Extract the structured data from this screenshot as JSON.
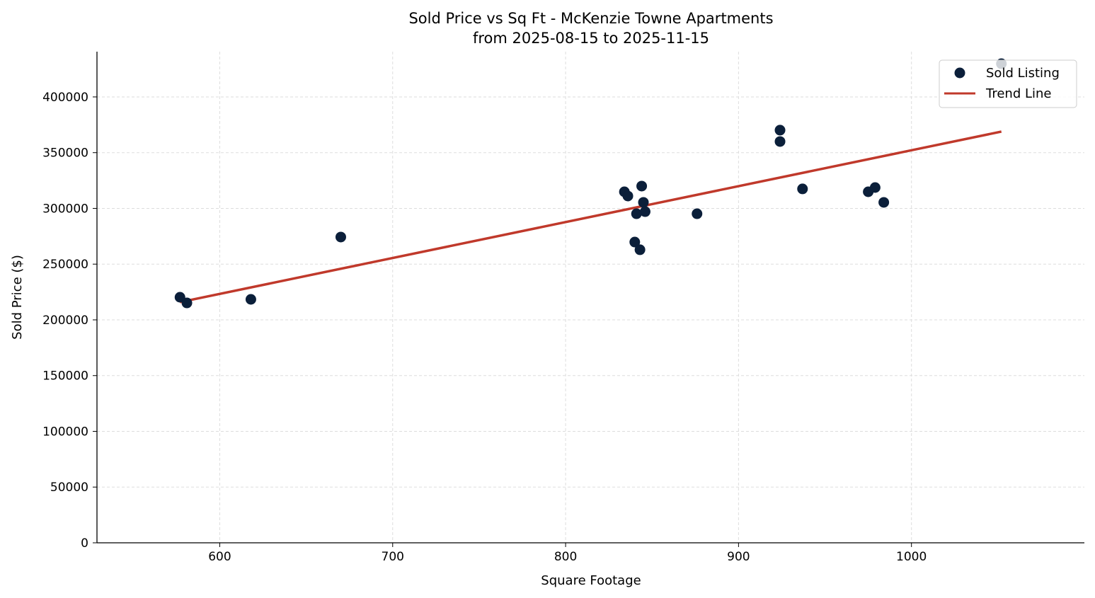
{
  "chart_data": {
    "type": "scatter",
    "title": "Sold Price vs Sq Ft - McKenzie Towne Apartments",
    "subtitle": "from 2025-08-15 to 2025-11-15",
    "xlabel": "Square Footage",
    "ylabel": "Sold Price ($)",
    "xlim": [
      529,
      1100
    ],
    "ylim": [
      0,
      440600
    ],
    "xticks": [
      600,
      700,
      800,
      900,
      1000
    ],
    "yticks": [
      0,
      50000,
      100000,
      150000,
      200000,
      250000,
      300000,
      350000,
      400000
    ],
    "grid": true,
    "legend_position": "top-right",
    "series": [
      {
        "name": "Sold Listing",
        "type": "scatter",
        "color": "#0b1f3a",
        "points": [
          [
            577,
            220300
          ],
          [
            581,
            215200
          ],
          [
            618,
            218400
          ],
          [
            670,
            274300
          ],
          [
            834,
            314900
          ],
          [
            836,
            311100
          ],
          [
            844,
            320000
          ],
          [
            845,
            305400
          ],
          [
            846,
            297100
          ],
          [
            841,
            295200
          ],
          [
            840,
            269800
          ],
          [
            843,
            262900
          ],
          [
            876,
            295200
          ],
          [
            924,
            370200
          ],
          [
            924,
            360000
          ],
          [
            937,
            317500
          ],
          [
            975,
            314900
          ],
          [
            979,
            318700
          ],
          [
            984,
            305400
          ],
          [
            1052,
            429800
          ]
        ]
      },
      {
        "name": "Trend Line",
        "type": "line",
        "color": "#c0392b",
        "points": [
          [
            577,
            215900
          ],
          [
            1052,
            368900
          ]
        ]
      }
    ]
  }
}
